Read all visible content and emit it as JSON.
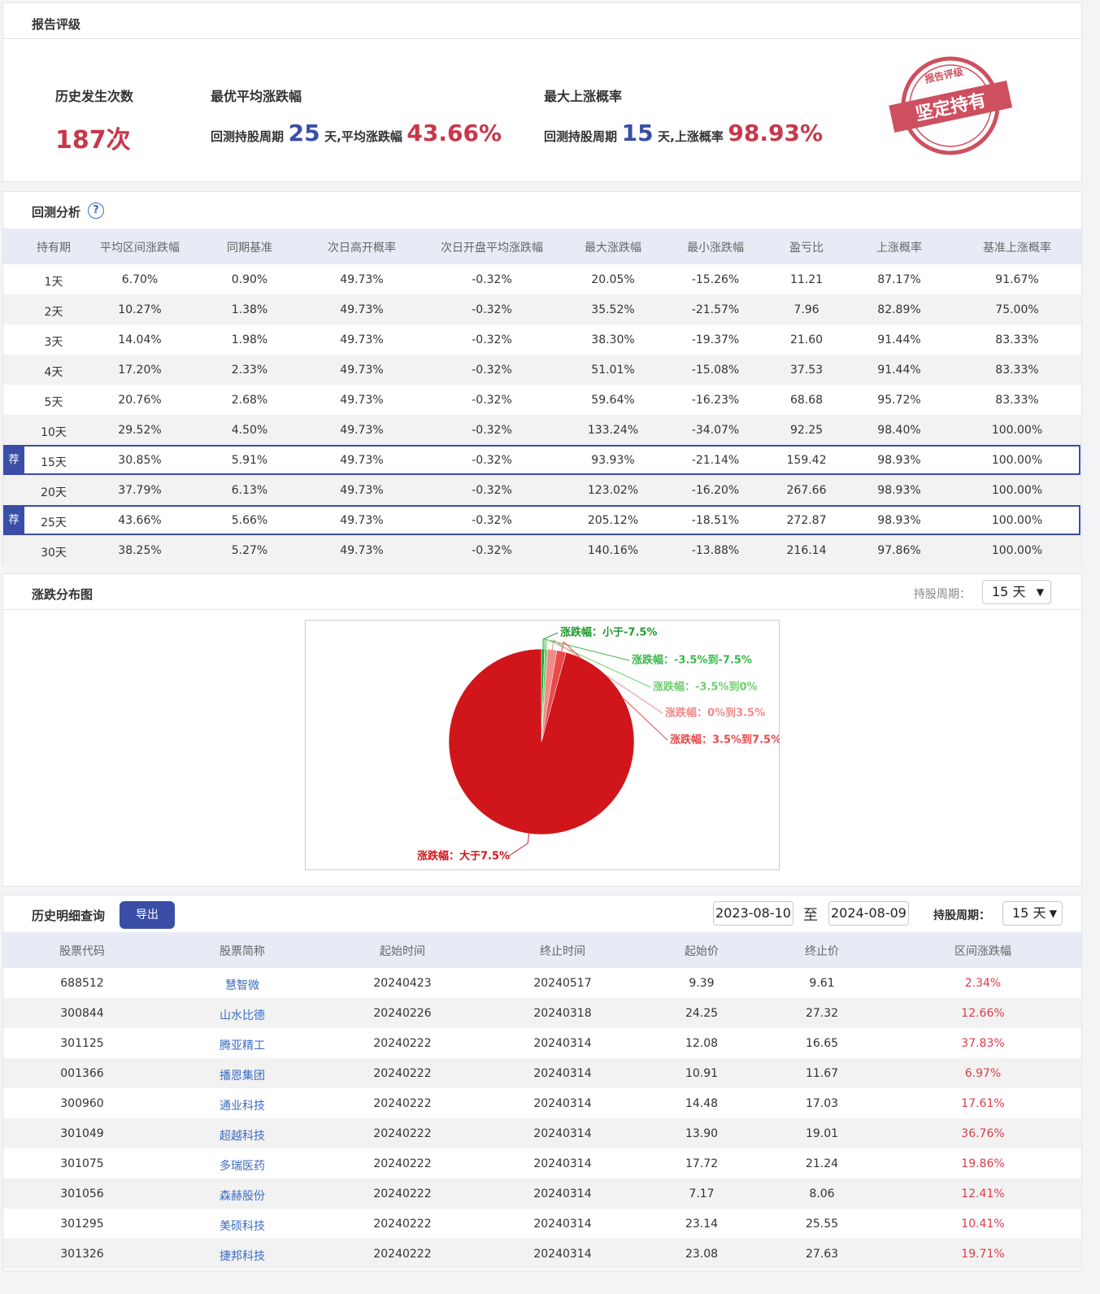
{
  "rating": {
    "title": "报告评级",
    "occurrences": {
      "label": "历史发生次数",
      "value": "187次"
    },
    "best_avg": {
      "label": "最优平均涨跌幅",
      "prefix": "回测持股周期",
      "days": "25",
      "mid": "天,平均涨跌幅",
      "value": "43.66%"
    },
    "max_prob": {
      "label": "最大上涨概率",
      "prefix": "回测持股周期",
      "days": "15",
      "mid": "天,上涨概率",
      "value": "98.93%"
    },
    "stamp": {
      "top": "报告评级",
      "main": "坚定持有"
    }
  },
  "backtest": {
    "title": "回测分析",
    "help": "?",
    "headers": [
      "持有期",
      "平均区间涨跌幅",
      "同期基准",
      "次日高开概率",
      "次日开盘平均涨跌幅",
      "最大涨跌幅",
      "最小涨跌幅",
      "盈亏比",
      "上涨概率",
      "基准上涨概率"
    ],
    "rows": [
      {
        "cells": [
          "1天",
          "6.70%",
          "0.90%",
          "49.73%",
          "-0.32%",
          "20.05%",
          "-15.26%",
          "11.21",
          "87.17%",
          "91.67%"
        ]
      },
      {
        "cells": [
          "2天",
          "10.27%",
          "1.38%",
          "49.73%",
          "-0.32%",
          "35.52%",
          "-21.57%",
          "7.96",
          "82.89%",
          "75.00%"
        ]
      },
      {
        "cells": [
          "3天",
          "14.04%",
          "1.98%",
          "49.73%",
          "-0.32%",
          "38.30%",
          "-19.37%",
          "21.60",
          "91.44%",
          "83.33%"
        ]
      },
      {
        "cells": [
          "4天",
          "17.20%",
          "2.33%",
          "49.73%",
          "-0.32%",
          "51.01%",
          "-15.08%",
          "37.53",
          "91.44%",
          "83.33%"
        ]
      },
      {
        "cells": [
          "5天",
          "20.76%",
          "2.68%",
          "49.73%",
          "-0.32%",
          "59.64%",
          "-16.23%",
          "68.68",
          "95.72%",
          "83.33%"
        ]
      },
      {
        "cells": [
          "10天",
          "29.52%",
          "4.50%",
          "49.73%",
          "-0.32%",
          "133.24%",
          "-34.07%",
          "92.25",
          "98.40%",
          "100.00%"
        ]
      },
      {
        "tag": "荐",
        "cells": [
          "15天",
          "30.85%",
          "5.91%",
          "49.73%",
          "-0.32%",
          "93.93%",
          "-21.14%",
          "159.42",
          "98.93%",
          "100.00%"
        ]
      },
      {
        "cells": [
          "20天",
          "37.79%",
          "6.13%",
          "49.73%",
          "-0.32%",
          "123.02%",
          "-16.20%",
          "267.66",
          "98.93%",
          "100.00%"
        ]
      },
      {
        "tag": "荐",
        "cells": [
          "25天",
          "43.66%",
          "5.66%",
          "49.73%",
          "-0.32%",
          "205.12%",
          "-18.51%",
          "272.87",
          "98.93%",
          "100.00%"
        ]
      },
      {
        "cells": [
          "30天",
          "38.25%",
          "5.27%",
          "49.73%",
          "-0.32%",
          "140.16%",
          "-13.88%",
          "216.14",
          "97.86%",
          "100.00%"
        ]
      }
    ]
  },
  "distribution": {
    "title": "涨跌分布图",
    "period_label": "持股周期：",
    "period": "15 天"
  },
  "chart_data": {
    "type": "pie",
    "categories": [
      "涨跌幅：小于-7.5%",
      "涨跌幅：-3.5%到-7.5%",
      "涨跌幅：-3.5%到0%",
      "涨跌幅：0%到3.5%",
      "涨跌幅：3.5%到7.5%",
      "涨跌幅：大于7.5%"
    ],
    "values": [
      1,
      0,
      1,
      3,
      3,
      179
    ],
    "colors": [
      "#1f9a2c",
      "#3cb84a",
      "#6fcf6f",
      "#f28a8a",
      "#e84a4a",
      "#d0161a"
    ]
  },
  "history": {
    "title": "历史明细查询",
    "export": "导出",
    "date_from": "2023-08-10",
    "to": "至",
    "date_to": "2024-08-09",
    "period_label": "持股周期：",
    "period": "15 天",
    "headers": [
      "股票代码",
      "股票简称",
      "起始时间",
      "终止时间",
      "起始价",
      "终止价",
      "区间涨跌幅"
    ],
    "rows": [
      [
        "688512",
        "慧智微",
        "20240423",
        "20240517",
        "9.39",
        "9.61",
        "2.34%"
      ],
      [
        "300844",
        "山水比德",
        "20240226",
        "20240318",
        "24.25",
        "27.32",
        "12.66%"
      ],
      [
        "301125",
        "腾亚精工",
        "20240222",
        "20240314",
        "12.08",
        "16.65",
        "37.83%"
      ],
      [
        "001366",
        "播恩集团",
        "20240222",
        "20240314",
        "10.91",
        "11.67",
        "6.97%"
      ],
      [
        "300960",
        "通业科技",
        "20240222",
        "20240314",
        "14.48",
        "17.03",
        "17.61%"
      ],
      [
        "301049",
        "超越科技",
        "20240222",
        "20240314",
        "13.90",
        "19.01",
        "36.76%"
      ],
      [
        "301075",
        "多瑞医药",
        "20240222",
        "20240314",
        "17.72",
        "21.24",
        "19.86%"
      ],
      [
        "301056",
        "森赫股份",
        "20240222",
        "20240314",
        "7.17",
        "8.06",
        "12.41%"
      ],
      [
        "301295",
        "美硕科技",
        "20240222",
        "20240314",
        "23.14",
        "25.55",
        "10.41%"
      ],
      [
        "301326",
        "捷邦科技",
        "20240222",
        "20240314",
        "23.08",
        "27.63",
        "19.71%"
      ]
    ]
  }
}
